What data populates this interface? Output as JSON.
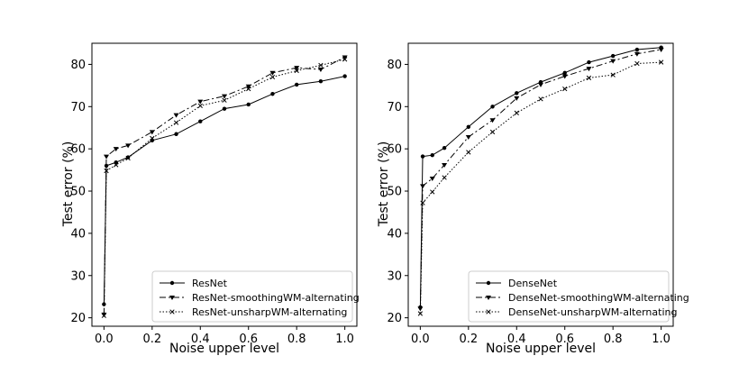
{
  "chart_data": [
    {
      "type": "line",
      "xlabel": "Noise upper level",
      "ylabel": "Test error (%)",
      "xlim": [
        -0.05,
        1.05
      ],
      "ylim": [
        18,
        85
      ],
      "xticks": [
        "0.0",
        "0.2",
        "0.4",
        "0.6",
        "0.8",
        "1.0"
      ],
      "yticks": [
        "20",
        "30",
        "40",
        "50",
        "60",
        "70",
        "80"
      ],
      "legend_position": "lower-right",
      "x": [
        0.0,
        0.01,
        0.05,
        0.1,
        0.2,
        0.3,
        0.4,
        0.5,
        0.6,
        0.7,
        0.8,
        0.9,
        1.0
      ],
      "series": [
        {
          "name": "ResNet",
          "style": "solid",
          "marker": "dot",
          "values": [
            23.2,
            56.0,
            56.8,
            58.0,
            62.0,
            63.5,
            66.5,
            69.5,
            70.5,
            73.0,
            75.2,
            76.0,
            77.2
          ]
        },
        {
          "name": "ResNet-smoothingWM-alternating",
          "style": "dashdot",
          "marker": "tri",
          "values": [
            20.8,
            58.2,
            60.0,
            60.8,
            64.0,
            68.0,
            71.2,
            72.5,
            74.8,
            78.0,
            79.2,
            78.8,
            81.7
          ]
        },
        {
          "name": "ResNet-unsharpWM-alternating",
          "style": "dotted",
          "marker": "x",
          "values": [
            20.5,
            54.8,
            56.2,
            57.8,
            62.5,
            66.2,
            70.2,
            71.5,
            74.2,
            77.0,
            78.5,
            79.8,
            81.2
          ]
        }
      ]
    },
    {
      "type": "line",
      "xlabel": "Noise upper level",
      "ylabel": "Test error (%)",
      "xlim": [
        -0.05,
        1.05
      ],
      "ylim": [
        18,
        85
      ],
      "xticks": [
        "0.0",
        "0.2",
        "0.4",
        "0.6",
        "0.8",
        "1.0"
      ],
      "yticks": [
        "20",
        "30",
        "40",
        "50",
        "60",
        "70",
        "80"
      ],
      "legend_position": "lower-right",
      "x": [
        0.0,
        0.01,
        0.05,
        0.1,
        0.2,
        0.3,
        0.4,
        0.5,
        0.6,
        0.7,
        0.8,
        0.9,
        1.0
      ],
      "series": [
        {
          "name": "DenseNet",
          "style": "solid",
          "marker": "dot",
          "values": [
            22.5,
            58.2,
            58.5,
            60.2,
            65.2,
            70.0,
            73.2,
            75.8,
            78.0,
            80.5,
            82.0,
            83.5,
            84.0
          ]
        },
        {
          "name": "DenseNet-smoothingWM-alternating",
          "style": "dashdot",
          "marker": "tri",
          "values": [
            22.2,
            51.2,
            53.0,
            56.2,
            62.8,
            66.8,
            72.0,
            75.2,
            77.2,
            79.0,
            80.8,
            82.5,
            83.5
          ]
        },
        {
          "name": "DenseNet-unsharpWM-alternating",
          "style": "dotted",
          "marker": "x",
          "values": [
            21.0,
            47.2,
            49.8,
            53.2,
            59.2,
            64.0,
            68.5,
            71.8,
            74.2,
            76.8,
            77.5,
            80.2,
            80.5
          ]
        }
      ]
    }
  ]
}
